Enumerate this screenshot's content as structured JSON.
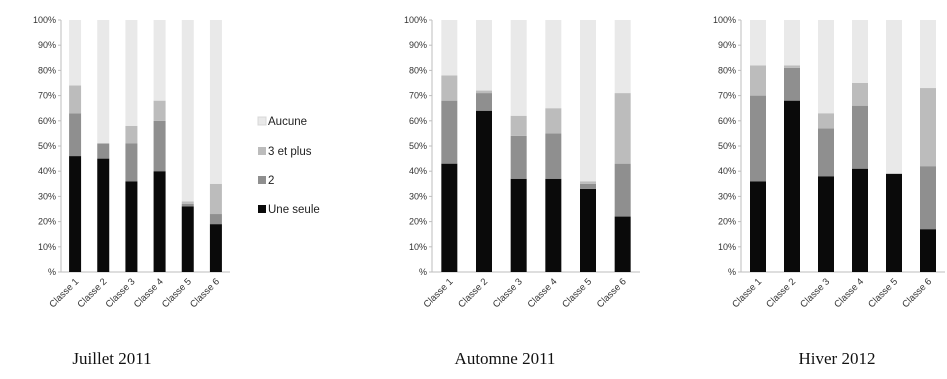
{
  "chart_data": [
    {
      "type": "bar",
      "stacked": true,
      "title": "Juillet 2011",
      "categories": [
        "Classe 1",
        "Classe 2",
        "Classe 3",
        "Classe 4",
        "Classe 5",
        "Classe 6"
      ],
      "y_ticks": [
        "%",
        "10%",
        "20%",
        "30%",
        "40%",
        "50%",
        "60%",
        "70%",
        "80%",
        "90%",
        "100%"
      ],
      "ylim": [
        0,
        100
      ],
      "series": [
        {
          "name": "Une seule",
          "color": "#0a0a0a",
          "values": [
            46,
            45,
            36,
            40,
            26,
            19
          ]
        },
        {
          "name": "2",
          "color": "#8f8f8f",
          "values": [
            17,
            6,
            15,
            20,
            1,
            4
          ]
        },
        {
          "name": "3 et plus",
          "color": "#bcbcbc",
          "values": [
            11,
            0,
            7,
            8,
            1,
            12
          ]
        },
        {
          "name": "Aucune",
          "color": "#e9e9e9",
          "values": [
            26,
            49,
            42,
            32,
            72,
            65
          ]
        }
      ]
    },
    {
      "type": "bar",
      "stacked": true,
      "title": "Automne 2011",
      "categories": [
        "Classe 1",
        "Classe 2",
        "Classe 3",
        "Classe 4",
        "Classe 5",
        "Classe 6"
      ],
      "y_ticks": [
        "%",
        "10%",
        "20%",
        "30%",
        "40%",
        "50%",
        "60%",
        "70%",
        "80%",
        "90%",
        "100%"
      ],
      "ylim": [
        0,
        100
      ],
      "series": [
        {
          "name": "Une seule",
          "color": "#0a0a0a",
          "values": [
            43,
            64,
            37,
            37,
            33,
            22
          ]
        },
        {
          "name": "2",
          "color": "#8f8f8f",
          "values": [
            25,
            7,
            17,
            18,
            2,
            21
          ]
        },
        {
          "name": "3 et plus",
          "color": "#bcbcbc",
          "values": [
            10,
            1,
            8,
            10,
            1,
            28
          ]
        },
        {
          "name": "Aucune",
          "color": "#e9e9e9",
          "values": [
            22,
            28,
            38,
            35,
            64,
            29
          ]
        }
      ]
    },
    {
      "type": "bar",
      "stacked": true,
      "title": "Hiver 2012",
      "categories": [
        "Classe 1",
        "Classe 2",
        "Classe 3",
        "Classe 4",
        "Classe 5",
        "Classe 6"
      ],
      "y_ticks": [
        "%",
        "10%",
        "20%",
        "30%",
        "40%",
        "50%",
        "60%",
        "70%",
        "80%",
        "90%",
        "100%"
      ],
      "ylim": [
        0,
        100
      ],
      "series": [
        {
          "name": "Une seule",
          "color": "#0a0a0a",
          "values": [
            36,
            68,
            38,
            41,
            39,
            17
          ]
        },
        {
          "name": "2",
          "color": "#8f8f8f",
          "values": [
            34,
            13,
            19,
            25,
            0,
            25
          ]
        },
        {
          "name": "3 et plus",
          "color": "#bcbcbc",
          "values": [
            12,
            1,
            6,
            9,
            0,
            31
          ]
        },
        {
          "name": "Aucune",
          "color": "#e9e9e9",
          "values": [
            18,
            18,
            37,
            25,
            61,
            27
          ]
        }
      ]
    }
  ],
  "legend": [
    {
      "label": "Aucune",
      "color": "#e9e9e9"
    },
    {
      "label": "3 et plus",
      "color": "#bcbcbc"
    },
    {
      "label": "2",
      "color": "#8f8f8f"
    },
    {
      "label": "Une seule",
      "color": "#0a0a0a"
    }
  ]
}
